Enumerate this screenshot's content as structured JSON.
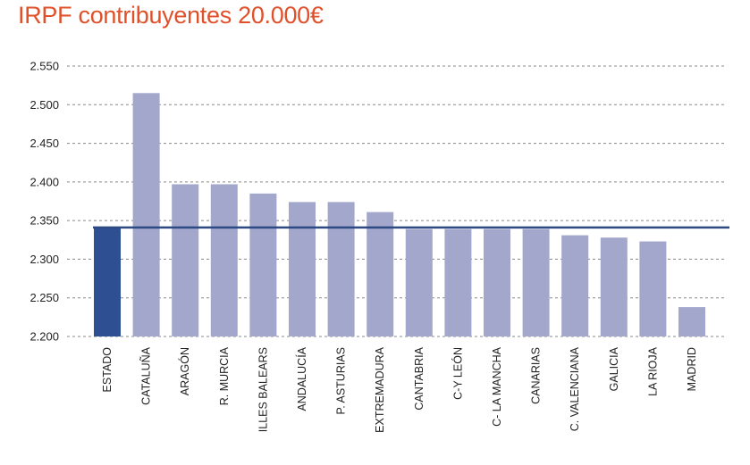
{
  "title": "IRPF contribuyentes 20.000€",
  "colors": {
    "title": "#e0502a",
    "bar": "#a3a7cb",
    "highlight": "#2f4f93",
    "reference_line": "#2d4a85",
    "grid": "#888888"
  },
  "chart_data": {
    "type": "bar",
    "title": "IRPF contribuyentes 20.000€",
    "xlabel": "",
    "ylabel": "",
    "ylim": [
      2200,
      2550
    ],
    "y_ticks": [
      2200,
      2250,
      2300,
      2350,
      2400,
      2450,
      2500,
      2550
    ],
    "y_tick_labels": [
      "2.200",
      "2.250",
      "2.300",
      "2.350",
      "2.400",
      "2.450",
      "2.500",
      "2.550"
    ],
    "grid": "horizontal dashed",
    "categories": [
      "ESTADO",
      "CATALUÑA",
      "ARAGÓN",
      "R. MURCIA",
      "ILLES BALEARS",
      "ANDALUCÍA",
      "P. ASTURIAS",
      "EXTREMADURA",
      "CANTABRIA",
      "C-Y LEÓN",
      "C- LA MANCHA",
      "CANARIAS",
      "C. VALENCIANA",
      "GALICIA",
      "LA RIOJA",
      "MADRID"
    ],
    "values": [
      2340,
      2515,
      2397,
      2397,
      2385,
      2374,
      2374,
      2361,
      2339,
      2339,
      2339,
      2339,
      2331,
      2328,
      2323,
      2238
    ],
    "highlighted_category": "ESTADO",
    "reference_line_value": 2341
  }
}
